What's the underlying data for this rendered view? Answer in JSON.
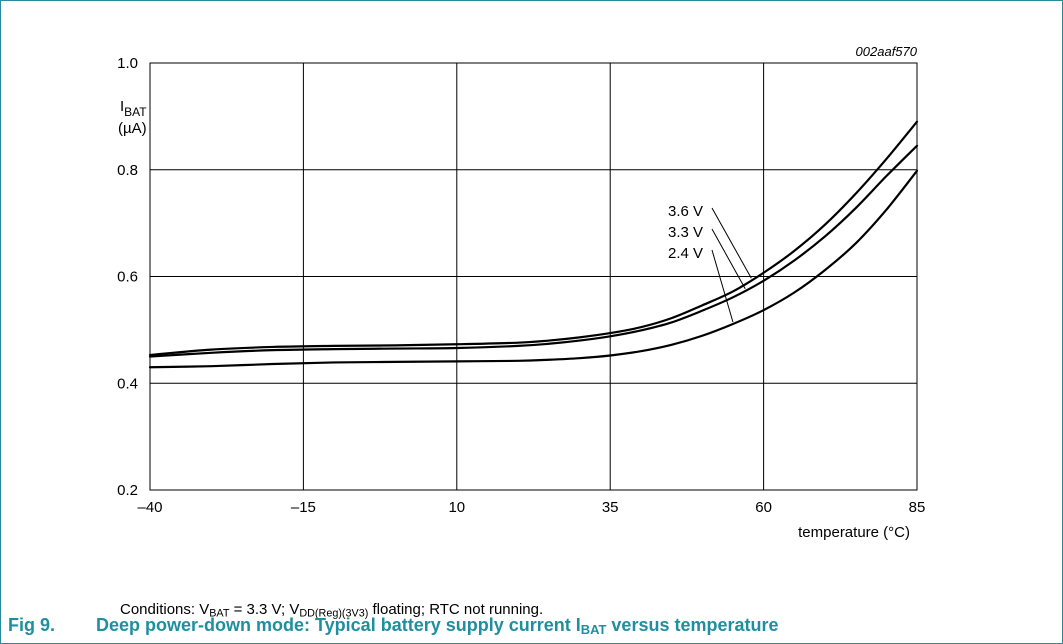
{
  "chart_data": {
    "type": "line",
    "figure_id": "002aaf570",
    "ylabel": {
      "main": "I",
      "sub": "BAT",
      "unit": "(µA)"
    },
    "xlabel": "temperature (°C)",
    "xlim": [
      -40,
      85
    ],
    "ylim": [
      0.2,
      1.0
    ],
    "xticks": [
      "–40",
      "–15",
      "10",
      "35",
      "60",
      "85"
    ],
    "yticks": [
      "0.2",
      "0.4",
      "0.6",
      "0.8",
      "1.0"
    ],
    "grid": true,
    "series": [
      {
        "name": "3.6 V",
        "x": [
          -40,
          -30,
          -20,
          -10,
          0,
          10,
          20,
          25,
          30,
          35,
          40,
          45,
          50,
          55,
          60,
          65,
          70,
          75,
          80,
          85
        ],
        "y": [
          0.453,
          0.463,
          0.468,
          0.47,
          0.471,
          0.473,
          0.476,
          0.48,
          0.486,
          0.494,
          0.505,
          0.522,
          0.546,
          0.572,
          0.607,
          0.648,
          0.697,
          0.755,
          0.82,
          0.89
        ]
      },
      {
        "name": "3.3 V",
        "x": [
          -40,
          -30,
          -20,
          -10,
          0,
          10,
          20,
          25,
          30,
          35,
          40,
          45,
          50,
          55,
          60,
          65,
          70,
          75,
          80,
          85
        ],
        "y": [
          0.45,
          0.457,
          0.462,
          0.464,
          0.465,
          0.466,
          0.47,
          0.474,
          0.48,
          0.488,
          0.499,
          0.514,
          0.536,
          0.561,
          0.592,
          0.63,
          0.675,
          0.728,
          0.788,
          0.845
        ]
      },
      {
        "name": "2.4 V",
        "x": [
          -40,
          -30,
          -20,
          -10,
          0,
          10,
          20,
          25,
          30,
          35,
          40,
          45,
          50,
          55,
          60,
          65,
          70,
          75,
          80,
          85
        ],
        "y": [
          0.43,
          0.432,
          0.436,
          0.439,
          0.44,
          0.441,
          0.442,
          0.444,
          0.447,
          0.452,
          0.46,
          0.472,
          0.489,
          0.511,
          0.537,
          0.57,
          0.612,
          0.662,
          0.725,
          0.798
        ]
      }
    ],
    "annotations": [
      "3.6 V",
      "3.3 V",
      "2.4 V"
    ]
  },
  "conditions": {
    "prefix": "Conditions: V",
    "vbat_sub": "BAT",
    "middle": " = 3.3 V; V",
    "vdd_sub": "DD(Reg)(3V3)",
    "suffix": " floating; RTC not running."
  },
  "caption": {
    "number": "Fig 9.",
    "text_before": "Deep power-down mode: Typical battery supply current I",
    "text_sub": "BAT",
    "text_after": " versus temperature"
  },
  "colors": {
    "caption": "#1f8fa0",
    "frame": "#2a8b9a",
    "line": "#000000",
    "grid": "#000000"
  }
}
